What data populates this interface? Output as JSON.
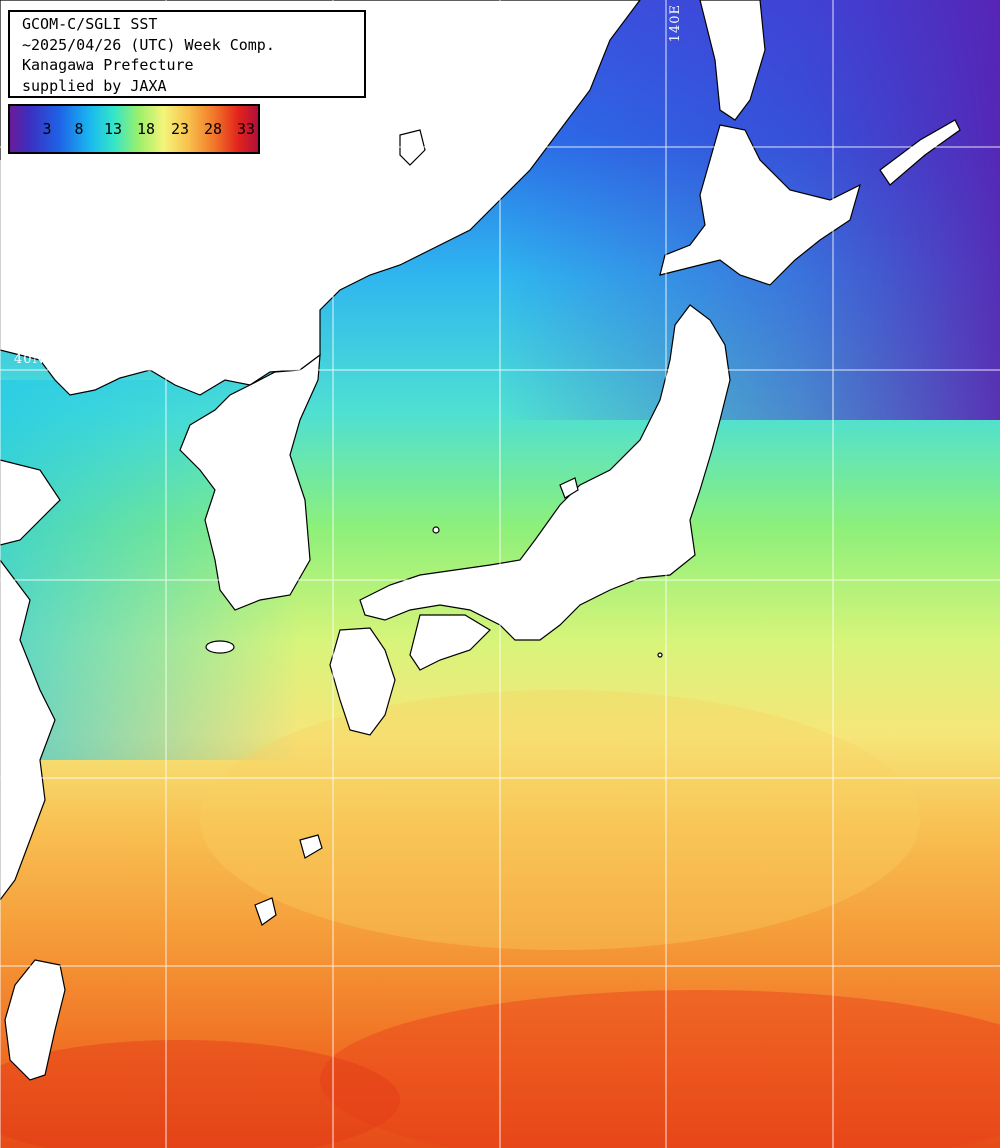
{
  "info": {
    "line1": "GCOM-C/SGLI SST",
    "line2": "~2025/04/26 (UTC) Week Comp.",
    "line3": "Kanagawa Prefecture",
    "line4": "supplied by JAXA"
  },
  "colorbar": {
    "ticks": [
      "3",
      "8",
      "13",
      "18",
      "23",
      "28",
      "33"
    ],
    "colors": [
      "#6a1b9a",
      "#1e63e6",
      "#19b6f0",
      "#9cf06a",
      "#f4f47a",
      "#f27a2a",
      "#e3231c",
      "#b0103a"
    ]
  },
  "grid": {
    "lon_label": "140E",
    "lat_label": "40N"
  }
}
